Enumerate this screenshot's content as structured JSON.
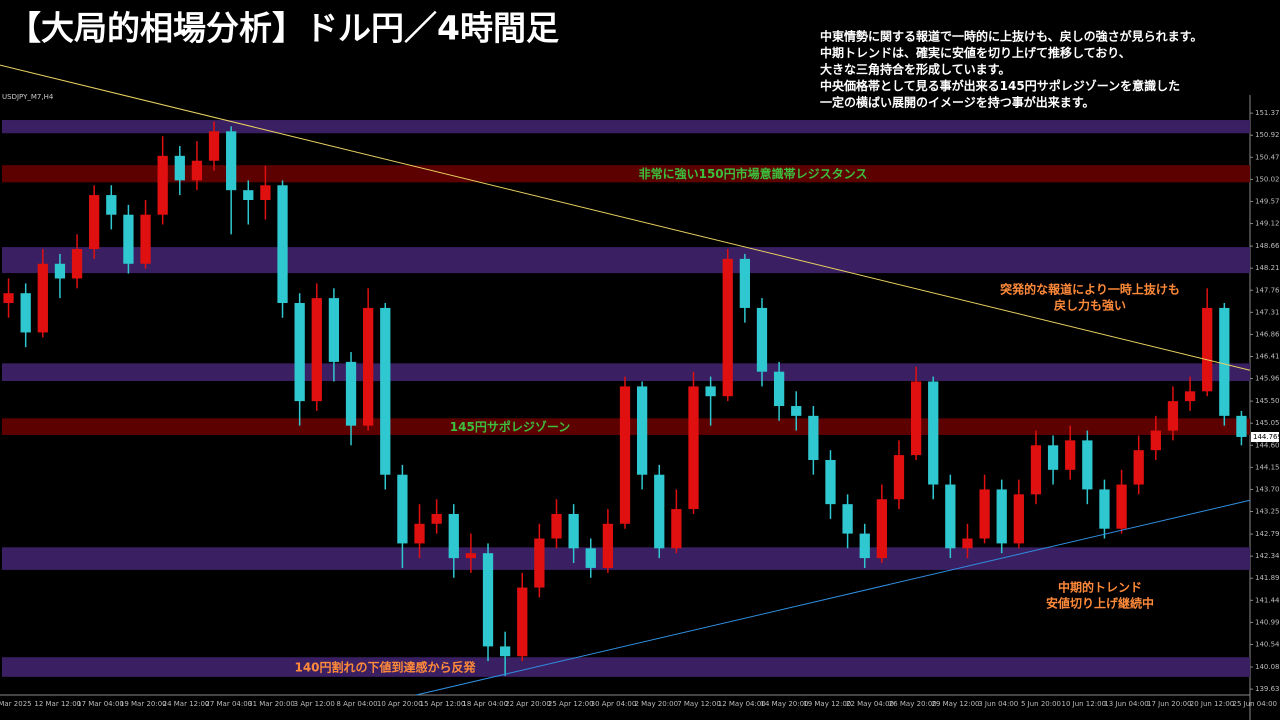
{
  "chart_data": {
    "type": "candlestick",
    "title": "【大局的相場分析】ドル円／4時間足",
    "commentary": [
      "中東情勢に関する報道で一時的に上抜けも、戻しの強さが見られます。",
      "中期トレンドは、確実に安値を切り上げて推移しており、",
      "大きな三角持合を形成しています。",
      "中央価格帯として見る事が出来る145円サポレジゾーンを意識した",
      "一定の横ばい展開のイメージを持つ事が出来ます。"
    ],
    "symbol_label": "USDJPY_M7,H4",
    "up_color": "#e01010",
    "down_color": "#30c8d0",
    "open": [
      147.5,
      147.7,
      146.9,
      148.3,
      148.0,
      148.6,
      149.7,
      149.3,
      148.3,
      149.3,
      150.5,
      150.0,
      150.4,
      151.0,
      149.8,
      149.6,
      149.9,
      147.5,
      145.5,
      147.6,
      146.3,
      145.0,
      147.4,
      144.0,
      142.6,
      143.0,
      143.2,
      142.3,
      142.4,
      140.5,
      140.3,
      141.7,
      142.7,
      143.2,
      142.5,
      142.1,
      143.0,
      145.8,
      144.0,
      142.5,
      143.3,
      145.8,
      145.6,
      148.4,
      147.4,
      146.1,
      145.4,
      145.2,
      144.3,
      143.4,
      142.8,
      142.3,
      143.5,
      144.4,
      145.9,
      143.8,
      142.5,
      142.7,
      143.7,
      142.6,
      143.6,
      144.6,
      144.1,
      144.7,
      143.7,
      142.9,
      143.8,
      144.5,
      144.9,
      145.5,
      145.7,
      147.4,
      145.2
    ],
    "high": [
      148.0,
      147.9,
      148.6,
      148.5,
      148.9,
      149.9,
      149.9,
      149.5,
      149.6,
      150.9,
      150.7,
      150.8,
      151.2,
      151.1,
      150.0,
      150.3,
      150.0,
      147.7,
      147.9,
      147.8,
      146.5,
      147.8,
      147.5,
      144.2,
      143.4,
      143.5,
      143.4,
      142.8,
      142.6,
      140.8,
      142.0,
      143.0,
      143.5,
      143.4,
      142.7,
      143.3,
      146.0,
      145.9,
      144.2,
      143.7,
      146.1,
      146.0,
      148.6,
      148.5,
      147.6,
      146.3,
      145.7,
      145.4,
      144.5,
      143.6,
      143.0,
      143.8,
      144.7,
      146.2,
      146.0,
      144.0,
      143.0,
      144.0,
      143.9,
      143.9,
      144.9,
      144.8,
      145.0,
      144.9,
      143.9,
      144.1,
      144.8,
      145.2,
      145.8,
      146.0,
      147.8,
      147.5,
      145.3
    ],
    "low": [
      147.2,
      146.6,
      146.8,
      147.6,
      147.8,
      148.4,
      149.0,
      148.1,
      148.2,
      149.1,
      149.7,
      149.8,
      150.2,
      148.9,
      149.1,
      149.2,
      147.2,
      145.0,
      145.3,
      145.9,
      144.6,
      144.9,
      143.7,
      142.1,
      142.3,
      142.8,
      141.9,
      142.0,
      140.2,
      139.9,
      140.2,
      141.5,
      142.5,
      142.2,
      141.9,
      142.0,
      142.9,
      143.7,
      142.3,
      142.4,
      143.2,
      145.0,
      145.5,
      147.1,
      145.8,
      145.1,
      144.9,
      144.0,
      143.1,
      142.5,
      142.1,
      142.2,
      143.3,
      144.3,
      143.5,
      142.3,
      142.3,
      142.6,
      142.4,
      142.5,
      143.4,
      143.8,
      143.9,
      143.4,
      142.7,
      142.8,
      143.6,
      144.3,
      144.7,
      145.3,
      145.6,
      145.0,
      144.6
    ],
    "close": [
      147.7,
      146.9,
      148.3,
      148.0,
      148.6,
      149.7,
      149.3,
      148.3,
      149.3,
      150.5,
      150.0,
      150.4,
      151.0,
      149.8,
      149.6,
      149.9,
      147.5,
      145.5,
      147.6,
      146.3,
      145.0,
      147.4,
      144.0,
      142.6,
      143.0,
      143.2,
      142.3,
      142.4,
      140.5,
      140.3,
      141.7,
      142.7,
      143.2,
      142.5,
      142.1,
      143.0,
      145.8,
      144.0,
      142.5,
      143.3,
      145.8,
      145.6,
      148.4,
      147.4,
      146.1,
      145.4,
      145.2,
      144.3,
      143.4,
      142.8,
      142.3,
      143.5,
      144.4,
      145.9,
      143.8,
      142.5,
      142.7,
      143.7,
      142.6,
      143.6,
      144.6,
      144.1,
      144.7,
      143.7,
      142.9,
      143.8,
      144.5,
      144.9,
      145.5,
      145.7,
      147.4,
      145.2,
      144.77
    ],
    "current_price": {
      "value": 144.769,
      "label": "144.769"
    },
    "ylim": [
      139.51,
      151.74
    ],
    "yticks": [
      {
        "value": 151.37,
        "label": "151.370"
      },
      {
        "value": 150.92,
        "label": "150.920"
      },
      {
        "value": 150.47,
        "label": "150.470"
      },
      {
        "value": 150.02,
        "label": "150.020"
      },
      {
        "value": 149.57,
        "label": "149.570"
      },
      {
        "value": 149.12,
        "label": "149.120"
      },
      {
        "value": 148.66,
        "label": "148.660"
      },
      {
        "value": 148.21,
        "label": "148.210"
      },
      {
        "value": 147.76,
        "label": "147.760"
      },
      {
        "value": 147.31,
        "label": "147.310"
      },
      {
        "value": 146.86,
        "label": "146.860"
      },
      {
        "value": 146.41,
        "label": "146.410"
      },
      {
        "value": 145.96,
        "label": "145.960"
      },
      {
        "value": 145.5,
        "label": "145.500"
      },
      {
        "value": 145.05,
        "label": "145.050"
      },
      {
        "value": 144.6,
        "label": "144.600"
      },
      {
        "value": 144.15,
        "label": "144.150"
      },
      {
        "value": 143.7,
        "label": "143.700"
      },
      {
        "value": 143.25,
        "label": "143.250"
      },
      {
        "value": 142.79,
        "label": "142.790"
      },
      {
        "value": 142.34,
        "label": "142.340"
      },
      {
        "value": 141.89,
        "label": "141.890"
      },
      {
        "value": 141.44,
        "label": "141.440"
      },
      {
        "value": 140.99,
        "label": "140.990"
      },
      {
        "value": 140.54,
        "label": "140.540"
      },
      {
        "value": 140.08,
        "label": "140.080"
      },
      {
        "value": 139.63,
        "label": "139.630"
      }
    ],
    "x_labels": [
      "Mar 2025",
      "12 Mar 12:00",
      "17 Mar 04:00",
      "19 Mar 20:00",
      "24 Mar 12:00",
      "27 Mar 04:00",
      "31 Mar 20:00",
      "3 Apr 12:00",
      "8 Apr 04:00",
      "10 Apr 20:00",
      "15 Apr 12:00",
      "18 Apr 04:00",
      "22 Apr 20:00",
      "25 Apr 12:00",
      "30 Apr 04:00",
      "2 May 20:00",
      "7 May 12:00",
      "12 May 04:00",
      "14 May 20:00",
      "19 May 12:00",
      "22 May 04:00",
      "26 May 20:00",
      "29 May 12:00",
      "3 Jun 04:00",
      "5 Jun 20:00",
      "10 Jun 12:00",
      "13 Jun 04:00",
      "17 Jun 20:00",
      "20 Jun 12:00",
      "25 Jun 04:00"
    ],
    "zones": [
      {
        "from": 150.96,
        "to": 151.23,
        "color": "#3a1f63"
      },
      {
        "from": 149.96,
        "to": 150.31,
        "color": "#5c0000",
        "label": "非常に強い150円市場意識帯レジスタンス",
        "label_color": "#3cbf3c"
      },
      {
        "from": 148.11,
        "to": 148.64,
        "color": "#3a1f63"
      },
      {
        "from": 145.91,
        "to": 146.27,
        "color": "#3a1f63"
      },
      {
        "from": 144.81,
        "to": 145.15,
        "color": "#5c0000",
        "label": "145円サポレジゾーン",
        "label_color": "#3cbf3c"
      },
      {
        "from": 142.06,
        "to": 142.52,
        "color": "#3a1f63"
      },
      {
        "from": 139.88,
        "to": 140.28,
        "color": "#3a1f63",
        "label": "140円割れの下値到達感から反発",
        "label_color": "#ff8a3a"
      }
    ],
    "trendlines": [
      {
        "x": [
          0,
          73
        ],
        "y": [
          152.35,
          146.13
        ],
        "color": "#e8d060"
      },
      {
        "x": [
          24.3,
          73
        ],
        "y": [
          139.51,
          143.48
        ],
        "color": "#2f8fe0"
      }
    ],
    "annotations": [
      {
        "lines": [
          "突発的な報道により一時上抜けも",
          "戻し力も強い"
        ],
        "color": "#ff8a3a"
      },
      {
        "lines": [
          "中期的トレンド",
          "安値切り上げ継続中"
        ],
        "color": "#ff8a3a"
      }
    ]
  }
}
